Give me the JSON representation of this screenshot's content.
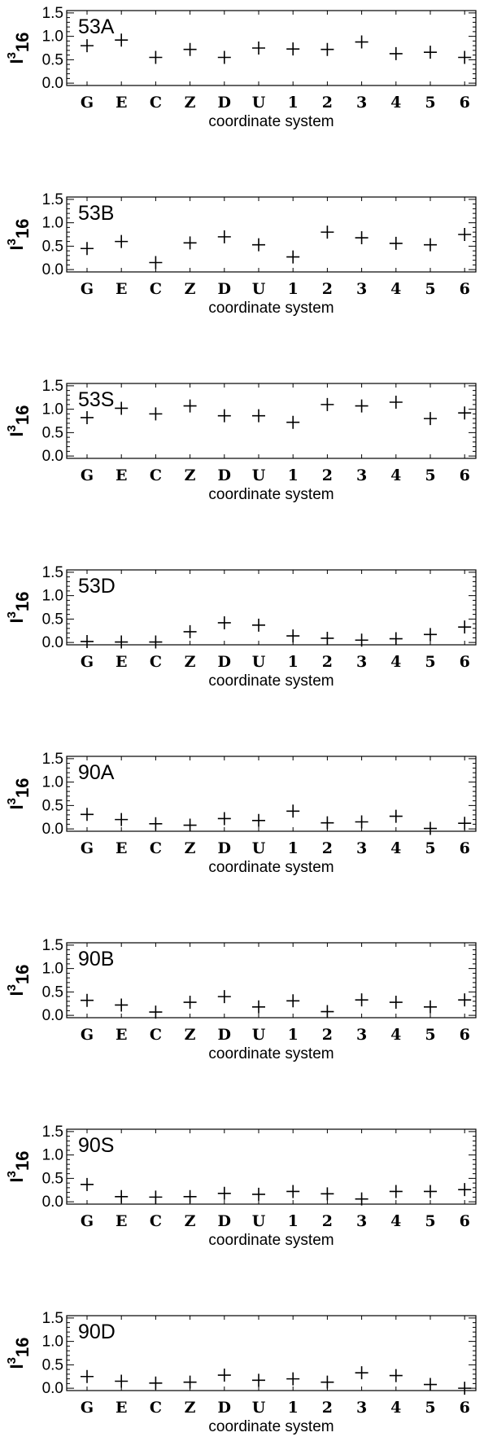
{
  "chart_data": [
    {
      "type": "scatter",
      "panel_label": "53A",
      "categories": [
        "G",
        "E",
        "C",
        "Z",
        "D",
        "U",
        "1",
        "2",
        "3",
        "4",
        "5",
        "6"
      ],
      "values": [
        0.8,
        0.92,
        0.55,
        0.72,
        0.55,
        0.75,
        0.73,
        0.72,
        0.88,
        0.63,
        0.66,
        0.55
      ],
      "xlabel": "coordinate system",
      "ylabel": {
        "base": "I",
        "sup": "3",
        "sub": "16"
      },
      "yticks": [
        "0.0",
        "0.5",
        "1.0",
        "1.5"
      ],
      "ylim": [
        -0.05,
        1.55
      ]
    },
    {
      "type": "scatter",
      "panel_label": "53B",
      "categories": [
        "G",
        "E",
        "C",
        "Z",
        "D",
        "U",
        "1",
        "2",
        "3",
        "4",
        "5",
        "6"
      ],
      "values": [
        0.45,
        0.6,
        0.15,
        0.57,
        0.7,
        0.53,
        0.27,
        0.8,
        0.68,
        0.56,
        0.53,
        0.75
      ],
      "xlabel": "coordinate system",
      "ylabel": {
        "base": "I",
        "sup": "3",
        "sub": "16"
      },
      "yticks": [
        "0.0",
        "0.5",
        "1.0",
        "1.5"
      ],
      "ylim": [
        -0.05,
        1.55
      ]
    },
    {
      "type": "scatter",
      "panel_label": "53S",
      "categories": [
        "G",
        "E",
        "C",
        "Z",
        "D",
        "U",
        "1",
        "2",
        "3",
        "4",
        "5",
        "6"
      ],
      "values": [
        0.82,
        1.02,
        0.9,
        1.07,
        0.86,
        0.86,
        0.72,
        1.1,
        1.07,
        1.15,
        0.8,
        0.92
      ],
      "xlabel": "coordinate system",
      "ylabel": {
        "base": "I",
        "sup": "3",
        "sub": "16"
      },
      "yticks": [
        "0.0",
        "0.5",
        "1.0",
        "1.5"
      ],
      "ylim": [
        -0.05,
        1.55
      ]
    },
    {
      "type": "scatter",
      "panel_label": "53D",
      "categories": [
        "G",
        "E",
        "C",
        "Z",
        "D",
        "U",
        "1",
        "2",
        "3",
        "4",
        "5",
        "6"
      ],
      "values": [
        0.02,
        0.01,
        0.01,
        0.23,
        0.42,
        0.37,
        0.14,
        0.09,
        0.05,
        0.08,
        0.17,
        0.33
      ],
      "xlabel": "coordinate system",
      "ylabel": {
        "base": "I",
        "sup": "3",
        "sub": "16"
      },
      "yticks": [
        "0.0",
        "0.5",
        "1.0",
        "1.5"
      ],
      "ylim": [
        -0.05,
        1.55
      ]
    },
    {
      "type": "scatter",
      "panel_label": "90A",
      "categories": [
        "G",
        "E",
        "C",
        "Z",
        "D",
        "U",
        "1",
        "2",
        "3",
        "4",
        "5",
        "6"
      ],
      "values": [
        0.31,
        0.2,
        0.11,
        0.08,
        0.22,
        0.18,
        0.38,
        0.13,
        0.15,
        0.27,
        0.01,
        0.12
      ],
      "xlabel": "coordinate system",
      "ylabel": {
        "base": "I",
        "sup": "3",
        "sub": "16"
      },
      "yticks": [
        "0.0",
        "0.5",
        "1.0",
        "1.5"
      ],
      "ylim": [
        -0.05,
        1.55
      ]
    },
    {
      "type": "scatter",
      "panel_label": "90B",
      "categories": [
        "G",
        "E",
        "C",
        "Z",
        "D",
        "U",
        "1",
        "2",
        "3",
        "4",
        "5",
        "6"
      ],
      "values": [
        0.32,
        0.22,
        0.07,
        0.28,
        0.4,
        0.18,
        0.31,
        0.08,
        0.33,
        0.28,
        0.18,
        0.33
      ],
      "xlabel": "coordinate system",
      "ylabel": {
        "base": "I",
        "sup": "3",
        "sub": "16"
      },
      "yticks": [
        "0.0",
        "0.5",
        "1.0",
        "1.5"
      ],
      "ylim": [
        -0.05,
        1.55
      ]
    },
    {
      "type": "scatter",
      "panel_label": "90S",
      "categories": [
        "G",
        "E",
        "C",
        "Z",
        "D",
        "U",
        "1",
        "2",
        "3",
        "4",
        "5",
        "6"
      ],
      "values": [
        0.37,
        0.11,
        0.1,
        0.11,
        0.18,
        0.16,
        0.22,
        0.17,
        0.06,
        0.22,
        0.22,
        0.26
      ],
      "xlabel": "coordinate system",
      "ylabel": {
        "base": "I",
        "sup": "3",
        "sub": "16"
      },
      "yticks": [
        "0.0",
        "0.5",
        "1.0",
        "1.5"
      ],
      "ylim": [
        -0.05,
        1.55
      ]
    },
    {
      "type": "scatter",
      "panel_label": "90D",
      "categories": [
        "G",
        "E",
        "C",
        "Z",
        "D",
        "U",
        "1",
        "2",
        "3",
        "4",
        "5",
        "6"
      ],
      "values": [
        0.25,
        0.15,
        0.11,
        0.13,
        0.28,
        0.17,
        0.2,
        0.13,
        0.33,
        0.27,
        0.08,
        0.0
      ],
      "xlabel": "coordinate system",
      "ylabel": {
        "base": "I",
        "sup": "3",
        "sub": "16"
      },
      "yticks": [
        "0.0",
        "0.5",
        "1.0",
        "1.5"
      ],
      "ylim": [
        -0.05,
        1.55
      ]
    }
  ]
}
